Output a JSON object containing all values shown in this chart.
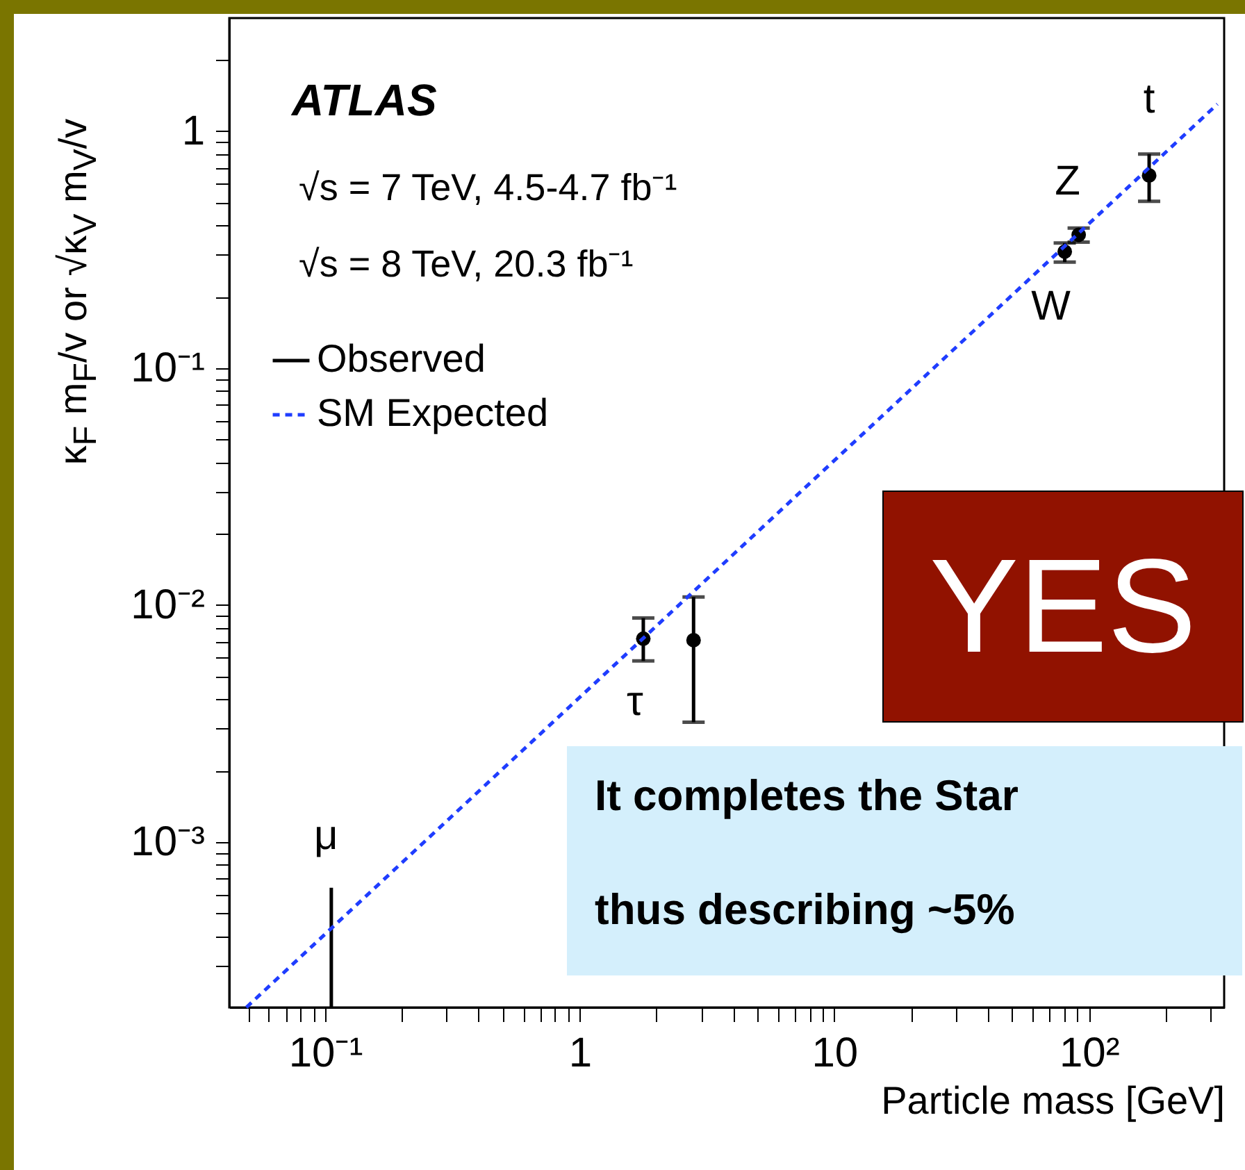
{
  "chart_data": {
    "type": "scatter",
    "xlabel": "Particle mass [GeV]",
    "ylabel": "κ$_{F}$ m$_{F}$/v or √κ$_{V}$ m$_{V}$/v",
    "log": "xy",
    "legend": "top left",
    "xlim": [
      0.042,
      340
    ],
    "ylim": [
      0.0002,
      3
    ],
    "xticks": [
      {
        "value": 0.05,
        "label": null
      },
      {
        "value": 0.06,
        "label": null
      },
      {
        "value": 0.07,
        "label": null
      },
      {
        "value": 0.08,
        "label": null
      },
      {
        "value": 0.09,
        "label": null
      },
      {
        "value": 0.1,
        "label": "10⁻¹"
      },
      {
        "value": 0.2,
        "label": null
      },
      {
        "value": 0.3,
        "label": null
      },
      {
        "value": 0.4,
        "label": null
      },
      {
        "value": 0.5,
        "label": null
      },
      {
        "value": 0.6,
        "label": null
      },
      {
        "value": 0.7,
        "label": null
      },
      {
        "value": 0.8,
        "label": null
      },
      {
        "value": 0.9,
        "label": null
      },
      1,
      {
        "value": 2,
        "label": null
      },
      {
        "value": 3,
        "label": null
      },
      {
        "value": 4,
        "label": null
      },
      {
        "value": 5,
        "label": null
      },
      {
        "value": 6,
        "label": null
      },
      {
        "value": 7,
        "label": null
      },
      {
        "value": 8,
        "label": null
      },
      {
        "value": 9,
        "label": null
      },
      10,
      {
        "value": 20,
        "label": null
      },
      {
        "value": 30,
        "label": null
      },
      {
        "value": 40,
        "label": null
      },
      {
        "value": 50,
        "label": null
      },
      {
        "value": 60,
        "label": null
      },
      {
        "value": 70,
        "label": null
      },
      {
        "value": 80,
        "label": null
      },
      {
        "value": 90,
        "label": null
      },
      {
        "value": 100,
        "label": "10²"
      },
      {
        "value": 200,
        "label": null
      },
      {
        "value": 300,
        "label": null
      }
    ],
    "yticks": [
      {
        "value": 0.0003,
        "label": null
      },
      {
        "value": 0.0004,
        "label": null
      },
      {
        "value": 0.0005,
        "label": null
      },
      {
        "value": 0.0006,
        "label": null
      },
      {
        "value": 0.0007,
        "label": null
      },
      {
        "value": 0.0008,
        "label": null
      },
      {
        "value": 0.0009,
        "label": null
      },
      {
        "value": 0.001,
        "label": "10⁻³"
      },
      {
        "value": 0.002,
        "label": null
      },
      {
        "value": 0.003,
        "label": null
      },
      {
        "value": 0.004,
        "label": null
      },
      {
        "value": 0.005,
        "label": null
      },
      {
        "value": 0.006,
        "label": null
      },
      {
        "value": 0.007,
        "label": null
      },
      {
        "value": 0.008,
        "label": null
      },
      {
        "value": 0.009,
        "label": null
      },
      {
        "value": 0.01,
        "label": "10⁻²"
      },
      {
        "value": 0.02,
        "label": null
      },
      {
        "value": 0.03,
        "label": null
      },
      {
        "value": 0.04,
        "label": null
      },
      {
        "value": 0.05,
        "label": null
      },
      {
        "value": 0.06,
        "label": null
      },
      {
        "value": 0.07,
        "label": null
      },
      {
        "value": 0.08,
        "label": null
      },
      {
        "value": 0.09,
        "label": null
      },
      {
        "value": 0.1,
        "label": "10⁻¹"
      },
      {
        "value": 0.2,
        "label": null
      },
      {
        "value": 0.3,
        "label": null
      },
      {
        "value": 0.4,
        "label": null
      },
      {
        "value": 0.5,
        "label": null
      },
      {
        "value": 0.6,
        "label": null
      },
      {
        "value": 0.7,
        "label": null
      },
      {
        "value": 0.8,
        "label": null
      },
      {
        "value": 0.9,
        "label": null
      },
      1,
      {
        "value": 2,
        "label": null
      }
    ],
    "series": [
      {
        "name": "Observed",
        "color": "#000000",
        "marker": "circle",
        "x": [
          1.777,
          2.8,
          80.4,
          91.2,
          172.5
        ],
        "values": [
          0.0072,
          0.0071,
          0.31,
          0.365,
          0.65
        ],
        "errors": [
          [
            0.0058,
            0.0088
          ],
          [
            0.0032,
            0.0108
          ],
          [
            0.28,
            0.337
          ],
          [
            0.34,
            0.39
          ],
          [
            0.505,
            0.8
          ]
        ]
      },
      {
        "type": "bar",
        "color": "#000000",
        "x": [
          0.1057
        ],
        "base": [
          0.0002
        ],
        "values": [
          0.00044
        ]
      },
      {
        "name": "SM Expected",
        "type": "line",
        "color": "#1f3dff",
        "line_style": "dashed",
        "x": [
          0.049,
          320
        ],
        "values": [
          0.0002,
          1.3
        ]
      }
    ],
    "annotations": [
      "ATLAS",
      "√s = 7 TeV, 4.5-4.7 fb⁻¹",
      "√s = 8 TeV, 20.3 fb⁻¹",
      "YES",
      "It completes the Star",
      "thus describing ~5%",
      "μ",
      {
        "text": "τ",
        "x": 1.777,
        "y": 0.0072
      },
      {
        "text": "W",
        "x": 80.4,
        "y": 0.31
      },
      {
        "text": "Z",
        "x": 91.2,
        "y": 0.365
      },
      {
        "text": "t",
        "x": 172.5,
        "y": 0.65
      }
    ]
  }
}
